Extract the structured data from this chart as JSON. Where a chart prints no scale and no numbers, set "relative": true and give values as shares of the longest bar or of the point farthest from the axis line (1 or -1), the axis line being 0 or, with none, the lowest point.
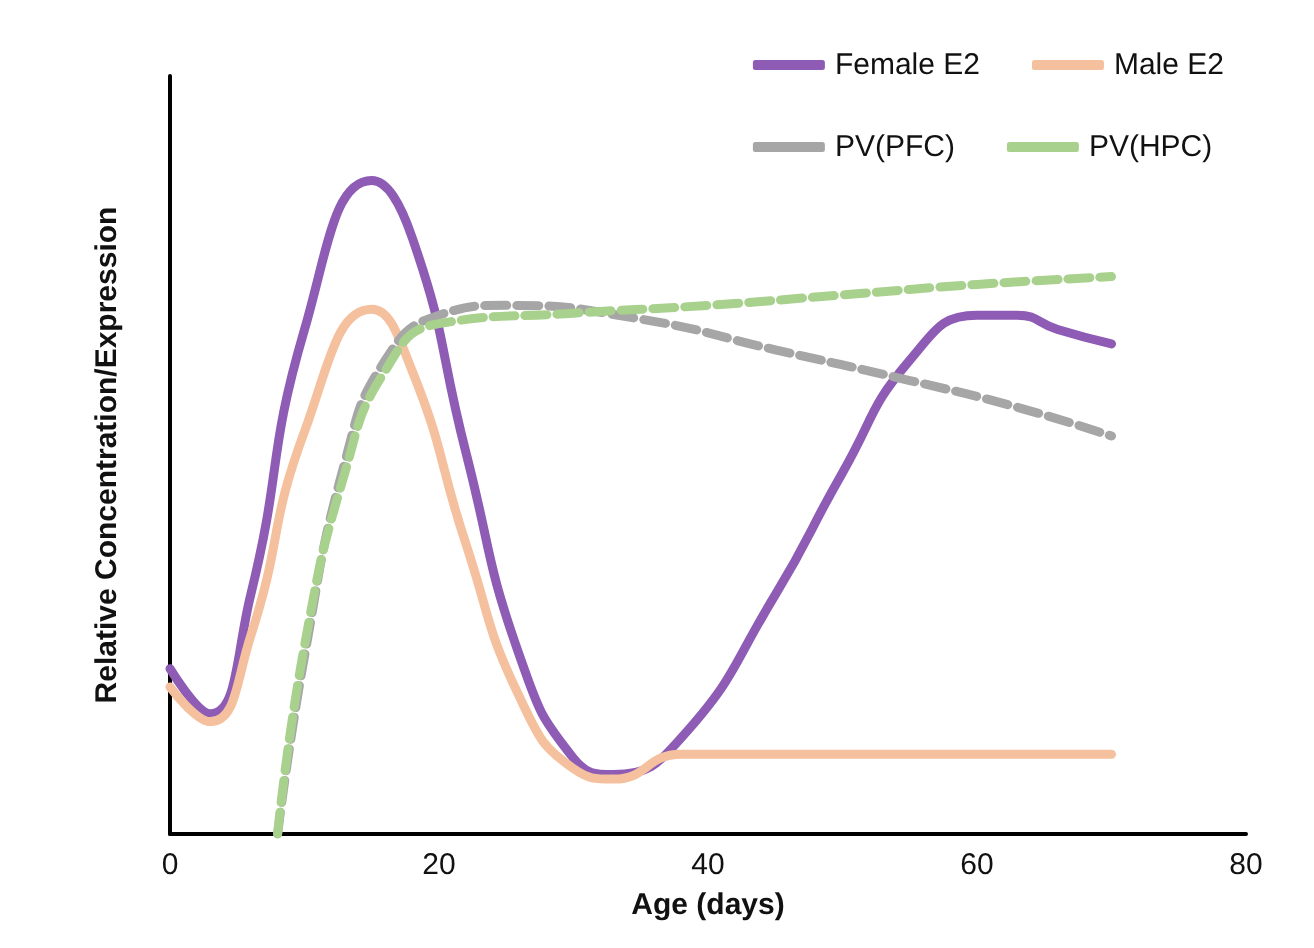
{
  "chart_data": {
    "type": "line",
    "relative": true,
    "xlabel": "Age (days)",
    "ylabel": "Relative Concentration/Expression",
    "xlim": [
      0,
      80
    ],
    "xticks": [
      0,
      20,
      40,
      60,
      80
    ],
    "grid": false,
    "legend": "top right",
    "marker": "none",
    "series": [
      {
        "name": "Female E2",
        "color": "#8e5bb5",
        "line_style": "solid",
        "x": [
          0,
          3,
          6,
          10,
          15,
          18,
          22,
          26,
          30,
          33,
          38,
          45,
          50,
          55,
          60,
          63,
          66,
          70
        ],
        "values": [
          0.253,
          0.184,
          0.366,
          0.772,
          1.0,
          0.913,
          0.584,
          0.272,
          0.116,
          0.091,
          0.147,
          0.366,
          0.553,
          0.725,
          0.794,
          0.794,
          0.772,
          0.75
        ]
      },
      {
        "name": "Male E2",
        "color": "#f5c09e",
        "line_style": "solid",
        "x": [
          0,
          3,
          6,
          10,
          15,
          18,
          22,
          26,
          30,
          33,
          38,
          45,
          55,
          70
        ],
        "values": [
          0.225,
          0.172,
          0.303,
          0.616,
          0.803,
          0.709,
          0.444,
          0.209,
          0.1,
          0.084,
          0.122,
          0.122,
          0.122,
          0.122
        ]
      },
      {
        "name": "PV(PFC)",
        "color": "#a6a6a6",
        "line_style": "dashed",
        "x": [
          8,
          10,
          13,
          16,
          20,
          25,
          35,
          45,
          55,
          63,
          70
        ],
        "values": [
          0,
          0.272,
          0.569,
          0.725,
          0.794,
          0.809,
          0.788,
          0.741,
          0.694,
          0.653,
          0.609
        ]
      },
      {
        "name": "PV(HPC)",
        "color": "#a9d18e",
        "line_style": "dashed",
        "x": [
          8,
          10,
          13,
          16,
          20,
          30,
          40,
          50,
          60,
          70
        ],
        "values": [
          0,
          0.288,
          0.553,
          0.709,
          0.781,
          0.797,
          0.809,
          0.825,
          0.841,
          0.853
        ]
      }
    ]
  }
}
